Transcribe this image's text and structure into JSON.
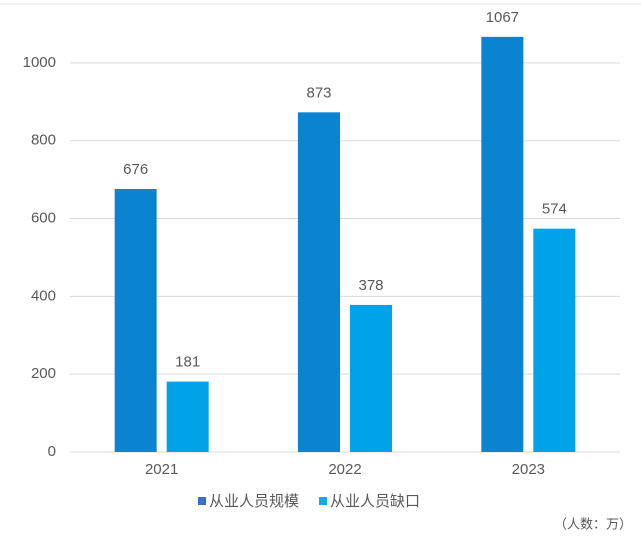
{
  "chart_data": {
    "type": "bar",
    "categories": [
      "2021",
      "2022",
      "2023"
    ],
    "series": [
      {
        "name": "从业人员规模",
        "color": "#0a84d0",
        "legend_color": "#3a6fc4",
        "values": [
          676,
          873,
          1067
        ]
      },
      {
        "name": "从业人员缺口",
        "color": "#00a2e8",
        "legend_color": "#12a8e6",
        "values": [
          181,
          378,
          574
        ]
      }
    ],
    "ylim": [
      0,
      1100
    ],
    "yticks": [
      0,
      200,
      400,
      600,
      800,
      1000
    ],
    "grid": true,
    "note": "（人数：万）"
  }
}
